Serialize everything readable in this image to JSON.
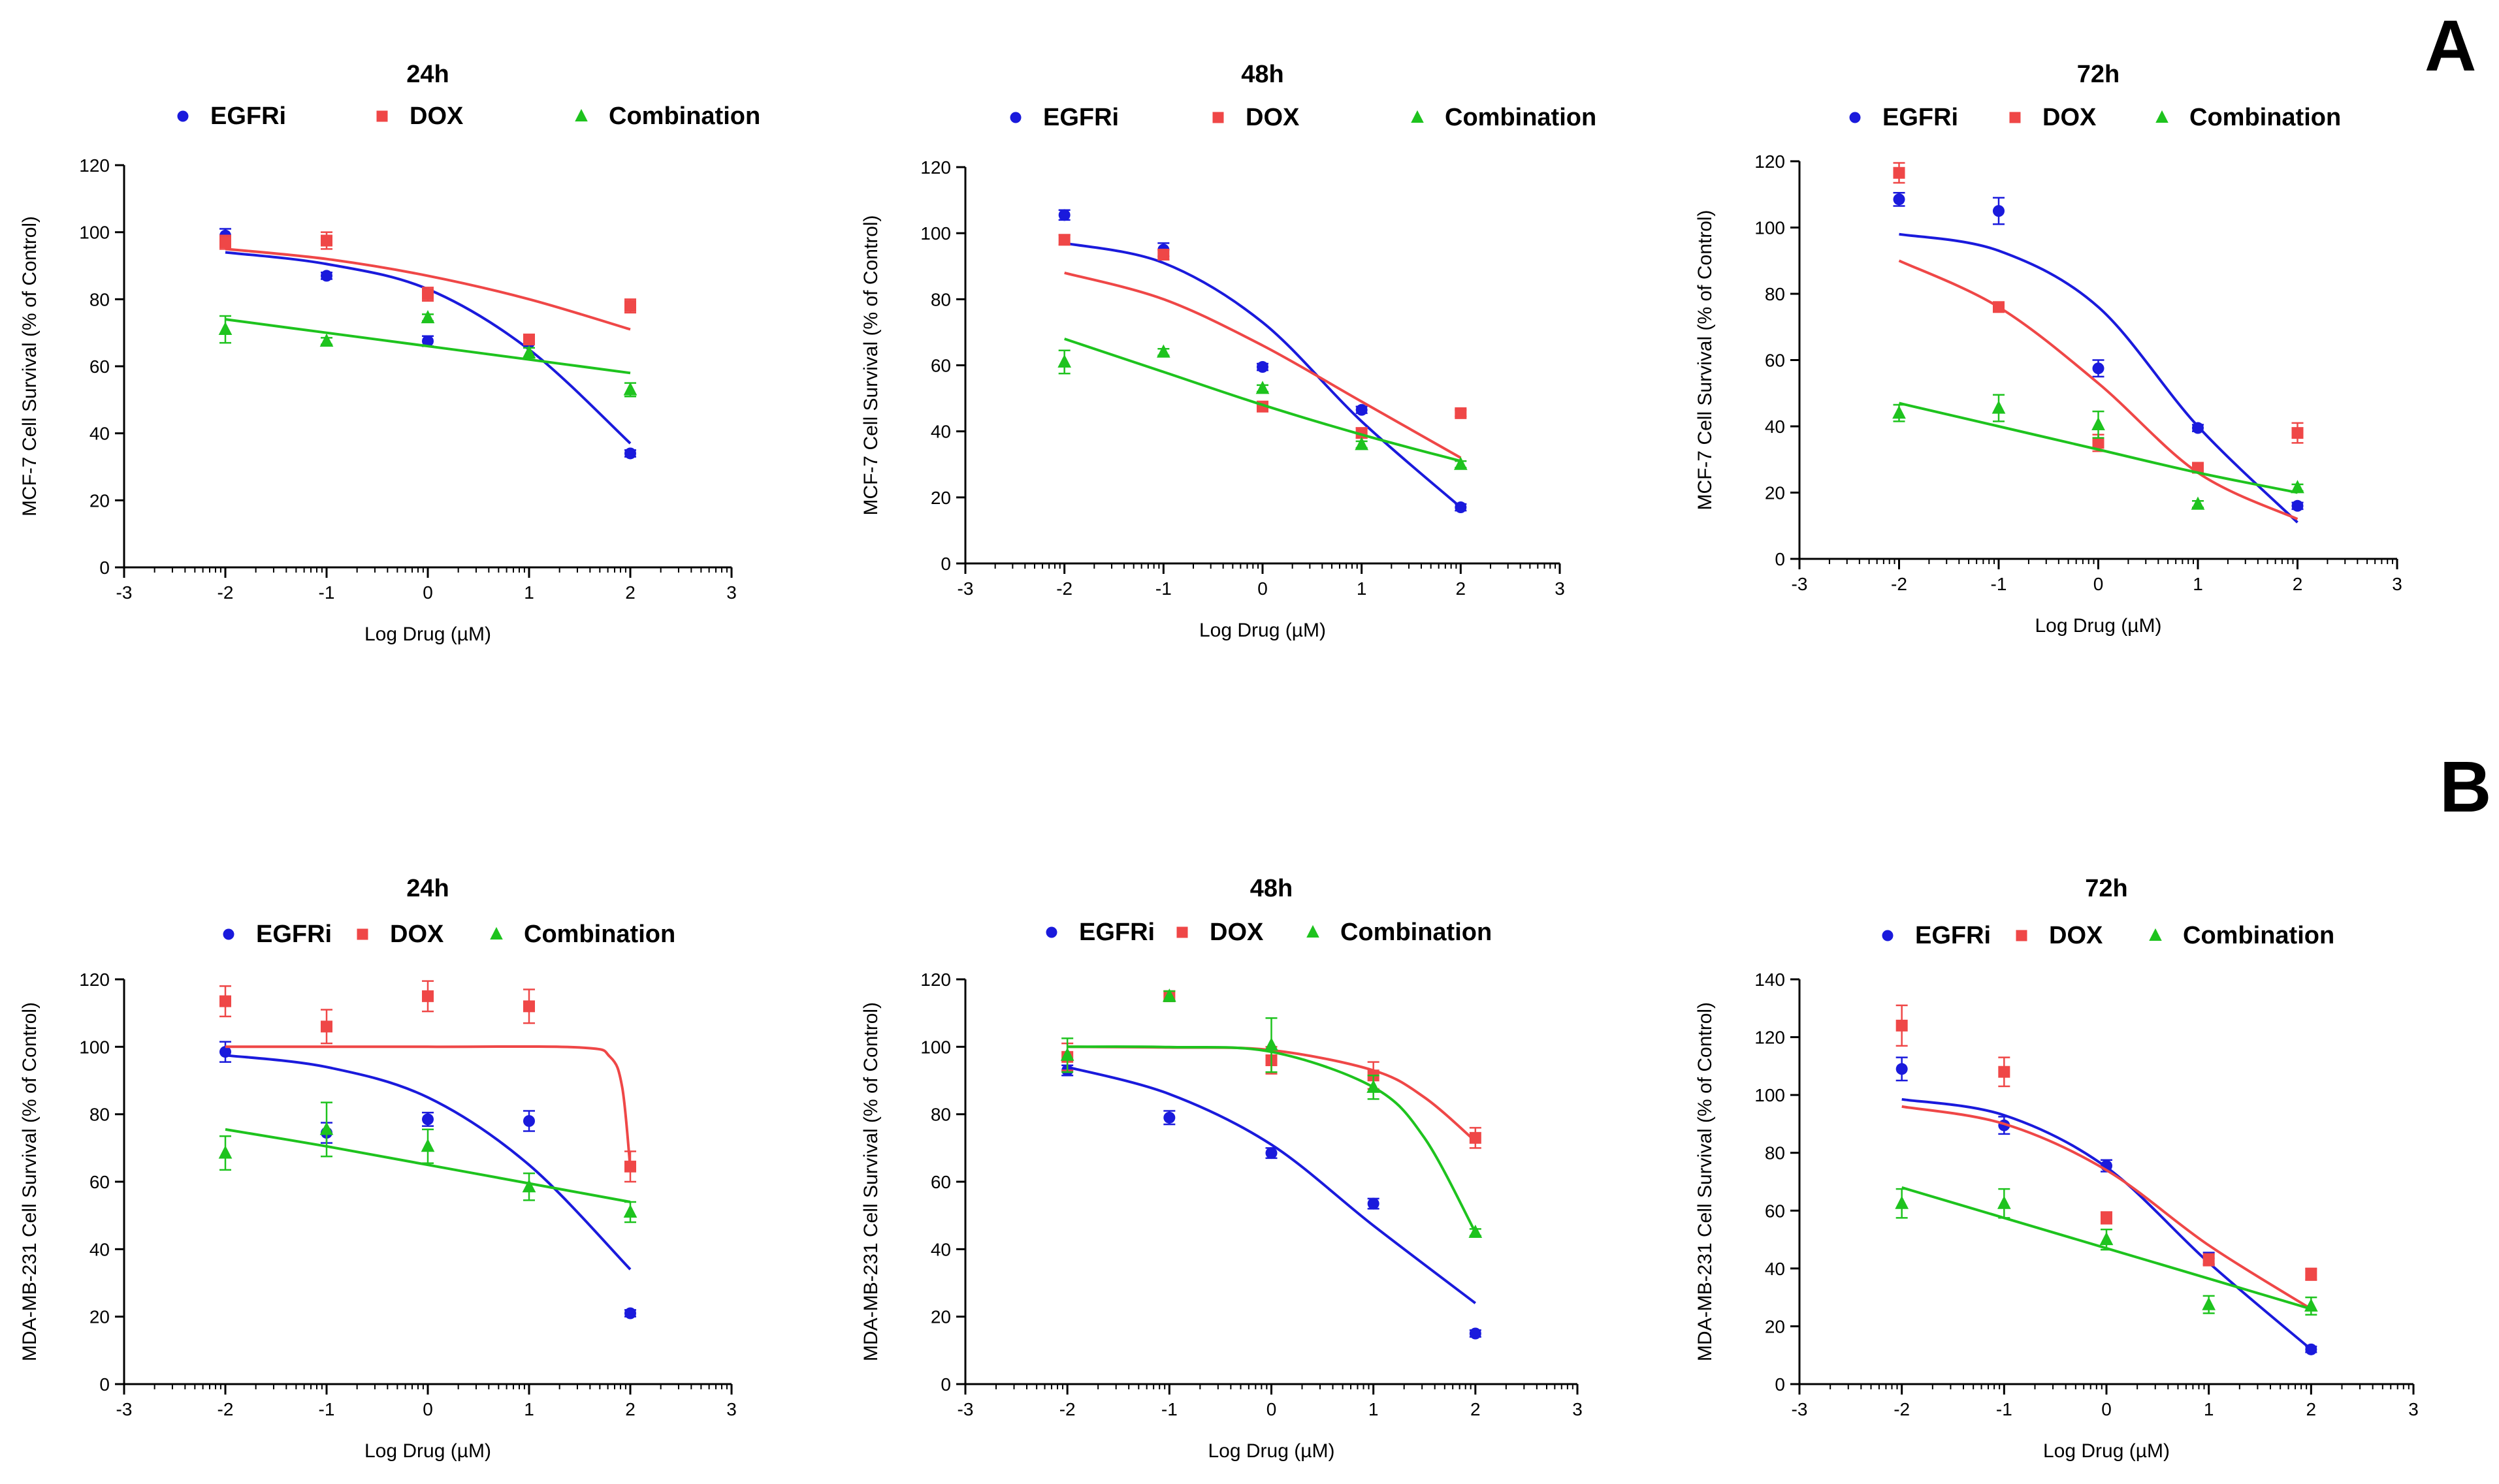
{
  "figure": {
    "panel_labels": [
      "A",
      "B"
    ],
    "colors": {
      "EGFRi": "#1a1adc",
      "DOX": "#ef4747",
      "Combination": "#1ec31e"
    },
    "markers": {
      "EGFRi": "circle",
      "DOX": "square",
      "Combination": "triangle"
    }
  },
  "chart_data": [
    {
      "type": "line",
      "title": "24h",
      "panel": "A",
      "xlabel": "Log Drug (µM)",
      "ylabel": "MCF-7 Cell Survival (% of Control)",
      "xlim": [
        -3,
        3
      ],
      "ylim": [
        0,
        120
      ],
      "xticks": [
        -3,
        -2,
        -1,
        0,
        1,
        2,
        3
      ],
      "yticks": [
        0,
        20,
        40,
        60,
        80,
        100,
        120
      ],
      "legend": [
        "EGFRi",
        "DOX",
        "Combination"
      ],
      "series": [
        {
          "name": "EGFRi",
          "x": [
            -2,
            -1,
            0,
            1,
            2
          ],
          "y": [
            99,
            87,
            67.5,
            67,
            34
          ],
          "err": [
            2,
            1,
            1.5,
            1.5,
            1
          ],
          "curve": [
            [
              -2,
              94
            ],
            [
              -1,
              90.5
            ],
            [
              0,
              83
            ],
            [
              1,
              65
            ],
            [
              2,
              37
            ]
          ]
        },
        {
          "name": "DOX",
          "x": [
            -2,
            -1,
            0,
            1,
            2
          ],
          "y": [
            97,
            97.5,
            81.5,
            68,
            78
          ],
          "err": [
            2,
            2.5,
            2,
            1.5,
            2
          ],
          "curve": [
            [
              -2,
              95
            ],
            [
              -1,
              92
            ],
            [
              0,
              87
            ],
            [
              1,
              80
            ],
            [
              2,
              71
            ]
          ]
        },
        {
          "name": "Combination",
          "x": [
            -2,
            -1,
            0,
            1,
            2
          ],
          "y": [
            71,
            67.5,
            74.5,
            64,
            53
          ],
          "err": [
            4,
            1,
            1,
            1.5,
            2
          ],
          "curve": [
            [
              -2,
              74
            ],
            [
              -1,
              70
            ],
            [
              0,
              66
            ],
            [
              1,
              62
            ],
            [
              2,
              58
            ]
          ]
        }
      ]
    },
    {
      "type": "line",
      "title": "48h",
      "panel": "A",
      "xlabel": "Log Drug (µM)",
      "ylabel": "MCF-7 Cell Survival (% of Control)",
      "xlim": [
        -3,
        3
      ],
      "ylim": [
        0,
        120
      ],
      "xticks": [
        -3,
        -2,
        -1,
        0,
        1,
        2,
        3
      ],
      "yticks": [
        0,
        20,
        40,
        60,
        80,
        100,
        120
      ],
      "legend": [
        "EGFRi",
        "DOX",
        "Combination"
      ],
      "series": [
        {
          "name": "EGFRi",
          "x": [
            -2,
            -1,
            0,
            1,
            2
          ],
          "y": [
            105.5,
            95,
            59.5,
            46.5,
            17
          ],
          "err": [
            1.5,
            2,
            1,
            1,
            1
          ],
          "curve": [
            [
              -2,
              97
            ],
            [
              -1,
              91
            ],
            [
              0,
              73
            ],
            [
              1,
              43
            ],
            [
              2,
              17
            ]
          ]
        },
        {
          "name": "DOX",
          "x": [
            -2,
            -1,
            0,
            1,
            2
          ],
          "y": [
            98,
            93.5,
            47.5,
            39.5,
            45.5
          ],
          "err": [
            1.5,
            1.5,
            1.5,
            1.5,
            1
          ],
          "curve": [
            [
              -2,
              88
            ],
            [
              -1,
              80
            ],
            [
              0,
              66
            ],
            [
              1,
              49
            ],
            [
              2,
              32
            ]
          ]
        },
        {
          "name": "Combination",
          "x": [
            -2,
            -1,
            0,
            1,
            2
          ],
          "y": [
            61,
            64,
            53,
            36,
            30
          ],
          "err": [
            3.5,
            1,
            1,
            1,
            1
          ],
          "curve": [
            [
              -2,
              68
            ],
            [
              -1,
              58
            ],
            [
              0,
              48
            ],
            [
              1,
              39
            ],
            [
              2,
              31
            ]
          ]
        }
      ]
    },
    {
      "type": "line",
      "title": "72h",
      "panel": "A",
      "xlabel": "Log Drug (µM)",
      "ylabel": "MCF-7 Cell Survival (% of Control)",
      "xlim": [
        -3,
        3
      ],
      "ylim": [
        0,
        120
      ],
      "xticks": [
        -3,
        -2,
        -1,
        0,
        1,
        2,
        3
      ],
      "yticks": [
        0,
        20,
        40,
        60,
        80,
        100,
        120
      ],
      "legend": [
        "EGFRi",
        "DOX",
        "Combination"
      ],
      "series": [
        {
          "name": "EGFRi",
          "x": [
            -2,
            -1,
            0,
            1,
            2
          ],
          "y": [
            108.5,
            105,
            57.5,
            39.5,
            16
          ],
          "err": [
            2,
            4,
            2.5,
            1,
            1
          ],
          "curve": [
            [
              -2,
              98
            ],
            [
              -1,
              93
            ],
            [
              0,
              76
            ],
            [
              1,
              40
            ],
            [
              2,
              11
            ]
          ]
        },
        {
          "name": "DOX",
          "x": [
            -2,
            -1,
            0,
            1,
            2
          ],
          "y": [
            116.5,
            76,
            35,
            27.5,
            38
          ],
          "err": [
            3,
            1,
            2.5,
            1,
            3
          ],
          "curve": [
            [
              -2,
              90
            ],
            [
              -1,
              76
            ],
            [
              0,
              53
            ],
            [
              1,
              26
            ],
            [
              2,
              12
            ]
          ]
        },
        {
          "name": "Combination",
          "x": [
            -2,
            -1,
            0,
            1,
            2
          ],
          "y": [
            44,
            45.5,
            40.5,
            16.5,
            21.5
          ],
          "err": [
            2.5,
            4,
            4,
            1,
            1
          ],
          "curve": [
            [
              -2,
              47
            ],
            [
              -1,
              40
            ],
            [
              0,
              33
            ],
            [
              1,
              26
            ],
            [
              2,
              20
            ]
          ]
        }
      ]
    },
    {
      "type": "line",
      "title": "24h",
      "panel": "B",
      "xlabel": "Log Drug (µM)",
      "ylabel": "MDA-MB-231 Cell Survival (% of Control)",
      "xlim": [
        -3,
        3
      ],
      "ylim": [
        0,
        120
      ],
      "xticks": [
        -3,
        -2,
        -1,
        0,
        1,
        2,
        3
      ],
      "yticks": [
        0,
        20,
        40,
        60,
        80,
        100,
        120
      ],
      "legend": [
        "EGFRi",
        "DOX",
        "Combination"
      ],
      "series": [
        {
          "name": "EGFRi",
          "x": [
            -2,
            -1,
            0,
            1,
            2
          ],
          "y": [
            98.5,
            74.5,
            78.5,
            78,
            21
          ],
          "err": [
            3,
            3,
            2,
            3,
            1
          ],
          "curve": [
            [
              -2,
              97.5
            ],
            [
              -1,
              94
            ],
            [
              0,
              85
            ],
            [
              1,
              65
            ],
            [
              2,
              34
            ]
          ]
        },
        {
          "name": "DOX",
          "x": [
            -2,
            -1,
            0,
            1,
            2
          ],
          "y": [
            113.5,
            106,
            115,
            112,
            64.5
          ],
          "err": [
            4.5,
            5,
            4.5,
            5,
            4.5
          ],
          "curve": [
            [
              -2,
              100
            ],
            [
              0,
              100
            ],
            [
              1.5,
              99.8
            ],
            [
              1.8,
              97
            ],
            [
              1.92,
              88
            ],
            [
              2,
              64
            ]
          ]
        },
        {
          "name": "Combination",
          "x": [
            -2,
            -1,
            0,
            1,
            2
          ],
          "y": [
            68.5,
            75.5,
            70.5,
            58.5,
            51
          ],
          "err": [
            5,
            8,
            5,
            4,
            3
          ],
          "curve": [
            [
              -2,
              75.5
            ],
            [
              -1,
              70.5
            ],
            [
              0,
              65
            ],
            [
              1,
              59.5
            ],
            [
              2,
              54
            ]
          ]
        }
      ]
    },
    {
      "type": "line",
      "title": "48h",
      "panel": "B",
      "xlabel": "Log Drug (µM)",
      "ylabel": "MDA-MB-231 Cell Survival (% of Control)",
      "xlim": [
        -3,
        3
      ],
      "ylim": [
        0,
        120
      ],
      "xticks": [
        -3,
        -2,
        -1,
        0,
        1,
        2,
        3
      ],
      "yticks": [
        0,
        20,
        40,
        60,
        80,
        100,
        120
      ],
      "legend": [
        "EGFRi",
        "DOX",
        "Combination"
      ],
      "series": [
        {
          "name": "EGFRi",
          "x": [
            -2,
            -1,
            0,
            1,
            2
          ],
          "y": [
            93,
            79,
            68.5,
            53.5,
            15
          ],
          "err": [
            1.5,
            2,
            1.5,
            1.5,
            1
          ],
          "curve": [
            [
              -2,
              94
            ],
            [
              -1,
              86
            ],
            [
              0,
              71
            ],
            [
              1,
              47
            ],
            [
              2,
              24
            ]
          ]
        },
        {
          "name": "DOX",
          "x": [
            -2,
            -1,
            0,
            1,
            2
          ],
          "y": [
            97,
            115,
            96,
            91.5,
            73
          ],
          "err": [
            4,
            1.5,
            4,
            4,
            3
          ],
          "curve": [
            [
              -2,
              100
            ],
            [
              -1,
              99.8
            ],
            [
              0,
              99
            ],
            [
              1,
              93
            ],
            [
              1.5,
              85
            ],
            [
              2,
              72
            ]
          ]
        },
        {
          "name": "Combination",
          "x": [
            -2,
            -1,
            0,
            1,
            2
          ],
          "y": [
            97.5,
            115,
            100.5,
            88,
            45
          ],
          "err": [
            5,
            1.5,
            8,
            3.5,
            1
          ],
          "curve": [
            [
              -2,
              100
            ],
            [
              -1,
              99.9
            ],
            [
              0,
              98.5
            ],
            [
              1,
              88
            ],
            [
              1.5,
              73
            ],
            [
              2,
              45
            ]
          ]
        }
      ]
    },
    {
      "type": "line",
      "title": "72h",
      "panel": "B",
      "xlabel": "Log Drug (µM)",
      "ylabel": "MDA-MB-231 Cell Survival (% of Control)",
      "xlim": [
        -3,
        3
      ],
      "ylim": [
        0,
        140
      ],
      "xticks": [
        -3,
        -2,
        -1,
        0,
        1,
        2,
        3
      ],
      "yticks": [
        0,
        20,
        40,
        60,
        80,
        100,
        120,
        140
      ],
      "legend": [
        "EGFRi",
        "DOX",
        "Combination"
      ],
      "series": [
        {
          "name": "EGFRi",
          "x": [
            -2,
            -1,
            0,
            1,
            2
          ],
          "y": [
            109,
            89.5,
            75.5,
            43.5,
            12
          ],
          "err": [
            4,
            3,
            2,
            2,
            1
          ],
          "curve": [
            [
              -2,
              98.5
            ],
            [
              -1,
              93
            ],
            [
              0,
              75
            ],
            [
              1,
              42
            ],
            [
              2,
              12
            ]
          ]
        },
        {
          "name": "DOX",
          "x": [
            -2,
            -1,
            0,
            1,
            2
          ],
          "y": [
            124,
            108,
            57.5,
            43,
            38
          ],
          "err": [
            7,
            5,
            2,
            2,
            2
          ],
          "curve": [
            [
              -2,
              96
            ],
            [
              -1,
              90
            ],
            [
              0,
              74
            ],
            [
              1,
              48
            ],
            [
              2,
              26
            ]
          ]
        },
        {
          "name": "Combination",
          "x": [
            -2,
            -1,
            0,
            1,
            2
          ],
          "y": [
            62.5,
            62.5,
            50,
            27.5,
            27
          ],
          "err": [
            5,
            5,
            3.5,
            3,
            3
          ],
          "curve": [
            [
              -2,
              68
            ],
            [
              -1,
              57.5
            ],
            [
              0,
              47
            ],
            [
              1,
              36.5
            ],
            [
              2,
              26
            ]
          ]
        }
      ]
    }
  ]
}
